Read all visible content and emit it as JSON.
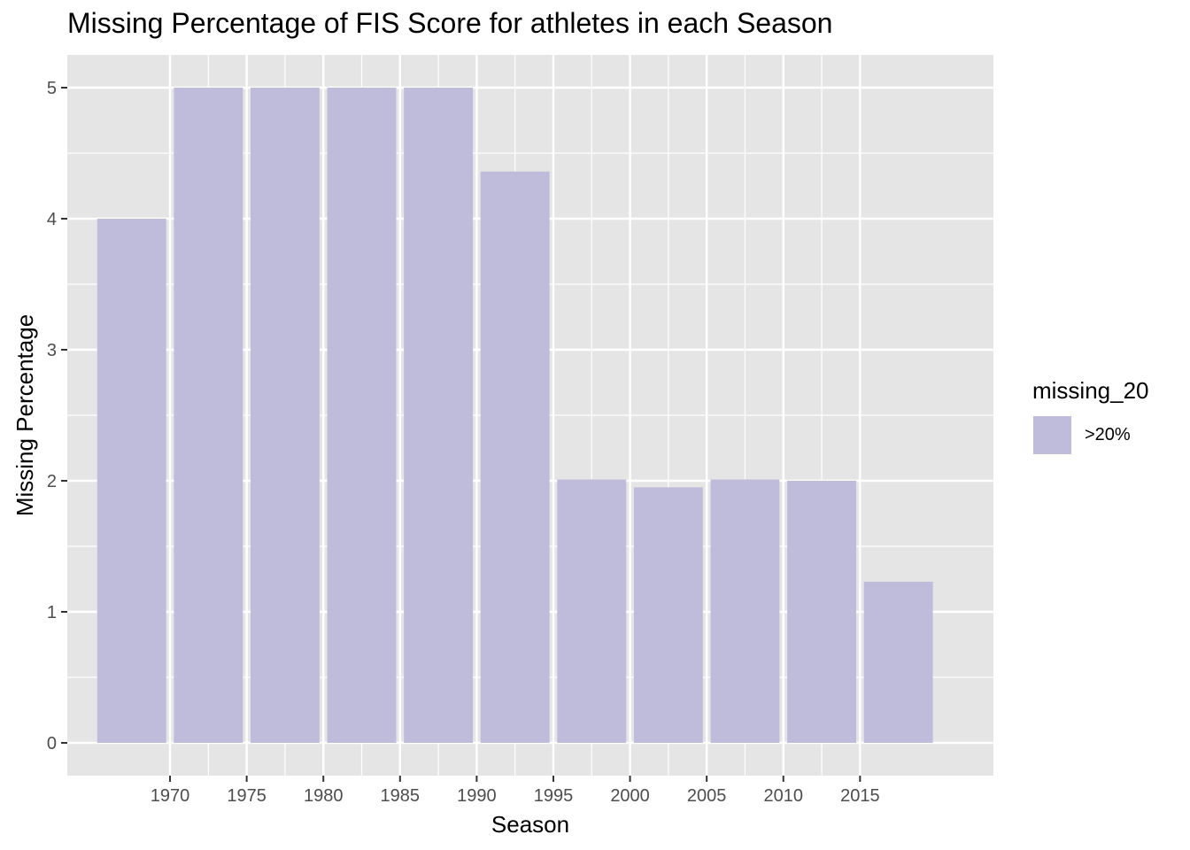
{
  "chart_data": {
    "type": "bar",
    "title": "Missing Percentage of FIS Score for athletes in each Season",
    "xlabel": "Season",
    "ylabel": "Missing Percentage",
    "x": [
      1967.5,
      1972.5,
      1977.5,
      1982.5,
      1987.5,
      1992.5,
      1997.5,
      2002.5,
      2007.5,
      2012.5,
      2017.5
    ],
    "values": [
      4.0,
      5.0,
      5.0,
      5.0,
      5.0,
      4.36,
      2.01,
      1.95,
      2.01,
      2.0,
      1.23
    ],
    "bar_width": 4.5,
    "xticks": [
      1970,
      1975,
      1980,
      1985,
      1990,
      1995,
      2000,
      2005,
      2010,
      2015
    ],
    "xtick_labels": [
      "1970",
      "1975",
      "1980",
      "1985",
      "1990",
      "1995",
      "2000",
      "2005",
      "2010",
      "2015"
    ],
    "yticks": [
      0,
      1,
      2,
      3,
      4,
      5
    ],
    "ytick_labels": [
      "0",
      "1",
      "2",
      "3",
      "4",
      "5"
    ],
    "xlim": [
      1963.3,
      2023.7
    ],
    "ylim": [
      -0.25,
      5.25
    ],
    "grid": true,
    "bar_color": "#bfbcdb",
    "panel_background": "#e5e5e5",
    "grid_color": "#ffffff",
    "legend": {
      "title": "missing_20",
      "placement": "right",
      "entries": [
        {
          "label": ">20%",
          "color": "#bfbcdb"
        }
      ]
    }
  }
}
